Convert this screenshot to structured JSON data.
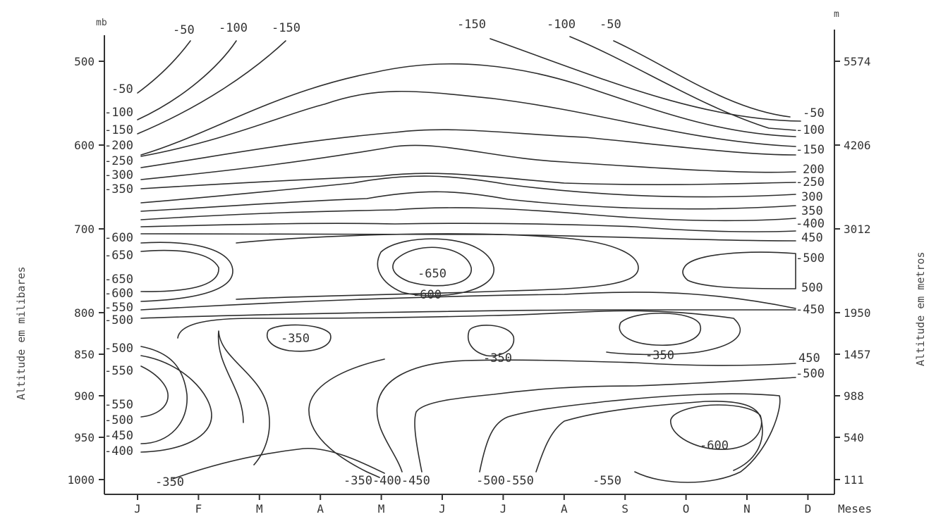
{
  "chart_data": {
    "type": "line",
    "xlabel": "Meses",
    "ylabel_left": "Altitude em milibares",
    "ylabel_right": "Altitude em metros",
    "left_unit": "mb",
    "right_unit": "m",
    "categories": [
      "J",
      "F",
      "M",
      "A",
      "M",
      "J",
      "J",
      "A",
      "S",
      "O",
      "N",
      "D"
    ],
    "y_pressure_ticks": [
      "500",
      "600",
      "700",
      "800",
      "850",
      "900",
      "950",
      "1000"
    ],
    "y_altitude_ticks": [
      "5574",
      "4206",
      "3012",
      "1950",
      "1457",
      "988",
      "540",
      "111"
    ],
    "grid": false,
    "contour_labels": {
      "top": [
        "-50",
        "-100",
        "-150",
        "-150",
        "-100",
        "-50"
      ],
      "left": [
        "-50",
        "-100",
        "-150",
        "-200",
        "-250",
        "-300",
        "-350",
        "-600",
        "-650",
        "-650",
        "-600",
        "-550",
        "-500",
        "-500",
        "-550",
        "-550",
        "-500",
        "-450",
        "-400"
      ],
      "right": [
        "-50",
        "-100",
        "-150",
        "200",
        "-250",
        "300",
        "350",
        "-400",
        "450",
        "-500",
        "500",
        "-450",
        "450",
        "-500"
      ],
      "interior": [
        "-650",
        "-600",
        "-350",
        "-350",
        "-350",
        "-600",
        "-350",
        "-350-400-450",
        "-500-550",
        "-550"
      ]
    }
  }
}
